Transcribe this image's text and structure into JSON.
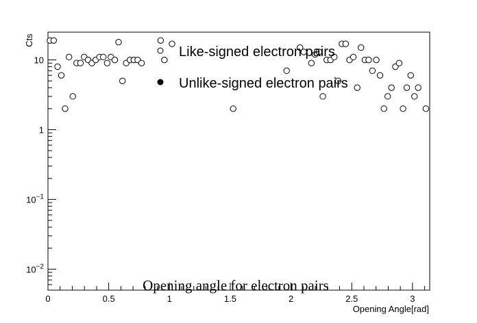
{
  "chart_data": {
    "type": "scatter",
    "title": "Opening angle for electron pairs",
    "xlabel": "Opening Angle[rad]",
    "ylabel": "Cts",
    "xlim": [
      0,
      3.1416
    ],
    "ylim": [
      0.005,
      25
    ],
    "yscale": "log",
    "grid": false,
    "legend_position": "top-center",
    "x_ticks": [
      {
        "value": 0,
        "label": "0"
      },
      {
        "value": 0.5,
        "label": "0.5"
      },
      {
        "value": 1,
        "label": "1"
      },
      {
        "value": 1.5,
        "label": "1.5"
      },
      {
        "value": 2,
        "label": "2"
      },
      {
        "value": 2.5,
        "label": "2.5"
      },
      {
        "value": 3,
        "label": "3"
      }
    ],
    "y_ticks": [
      {
        "value": 0.01,
        "base": "10",
        "exp": "−2"
      },
      {
        "value": 0.1,
        "base": "10",
        "exp": "−1"
      },
      {
        "value": 1,
        "base": "1",
        "exp": ""
      },
      {
        "value": 10,
        "base": "10",
        "exp": ""
      }
    ],
    "series": [
      {
        "name": "Like-signed electron pairs",
        "marker": "open-circle",
        "color": "#000000",
        "x": [
          0.016,
          0.047,
          0.079,
          0.11,
          0.141,
          0.173,
          0.204,
          0.236,
          0.267,
          0.298,
          0.33,
          0.361,
          0.393,
          0.424,
          0.455,
          0.487,
          0.518,
          0.55,
          0.581,
          0.613,
          0.644,
          0.675,
          0.707,
          0.738,
          0.77,
          0.927,
          0.958,
          1.021,
          1.524,
          1.964,
          2.074,
          2.105,
          2.168,
          2.199,
          2.231,
          2.262,
          2.294,
          2.325,
          2.356,
          2.388,
          2.419,
          2.45,
          2.482,
          2.513,
          2.545,
          2.576,
          2.608,
          2.639,
          2.67,
          2.702,
          2.733,
          2.765,
          2.796,
          2.827,
          2.859,
          2.89,
          2.922,
          2.953,
          2.985,
          3.016,
          3.047,
          3.11
        ],
        "y": [
          19,
          19,
          8,
          6,
          2,
          11,
          3,
          9,
          9,
          11,
          10,
          9,
          10,
          11,
          11,
          9,
          11,
          10,
          18,
          5,
          9,
          10,
          10,
          10,
          9,
          19,
          10,
          17,
          2,
          7,
          15,
          13,
          9,
          12,
          13,
          3,
          10,
          10,
          11,
          5,
          17,
          17,
          10,
          11,
          4,
          15,
          10,
          10,
          7,
          10,
          6,
          2,
          3,
          4,
          8,
          9,
          2,
          4,
          6,
          3,
          4,
          2
        ]
      },
      {
        "name": "Unlike-signed electron pairs",
        "marker": "filled-circle",
        "color": "#000000",
        "x": [],
        "y": []
      }
    ]
  }
}
